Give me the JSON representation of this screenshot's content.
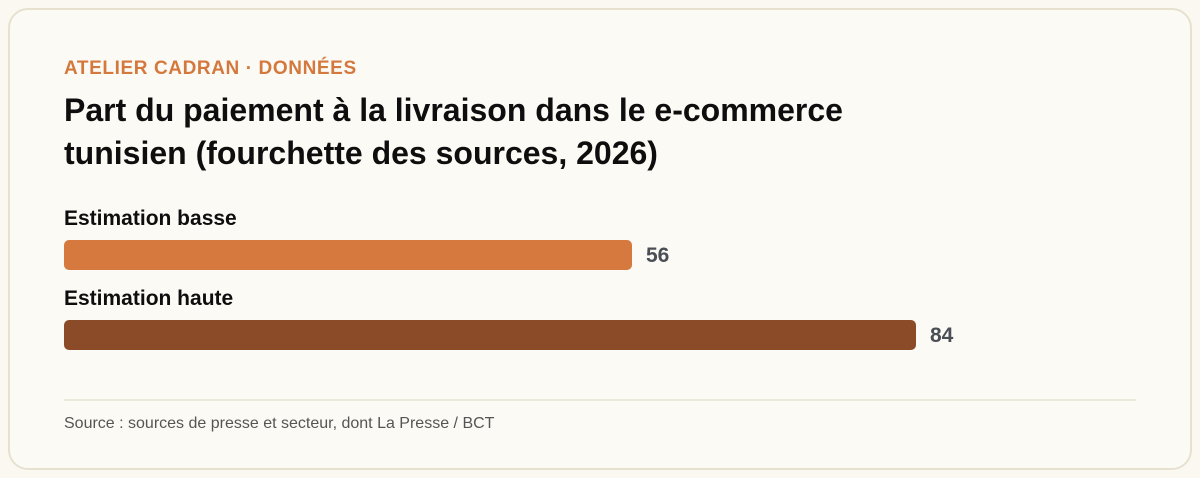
{
  "kicker": "ATELIER CADRAN · DONNÉES",
  "title_lines": [
    "Part du paiement à la livraison dans le e-commerce",
    "tunisien (fourchette des sources, 2026)"
  ],
  "source": "Source : sources de presse et secteur, dont La Presse / BCT",
  "colors": {
    "accent": "#d4793d",
    "bar_low": "#d5793e",
    "bar_high": "#8b4a28",
    "value_text": "#4a4e55"
  },
  "chart_data": {
    "type": "bar",
    "orientation": "horizontal",
    "categories": [
      "Estimation basse",
      "Estimation haute"
    ],
    "values": [
      56,
      84
    ],
    "title": "Part du paiement à la livraison dans le e-commerce tunisien (fourchette des sources, 2026)",
    "xlim": [
      0,
      100
    ],
    "grid": false
  }
}
